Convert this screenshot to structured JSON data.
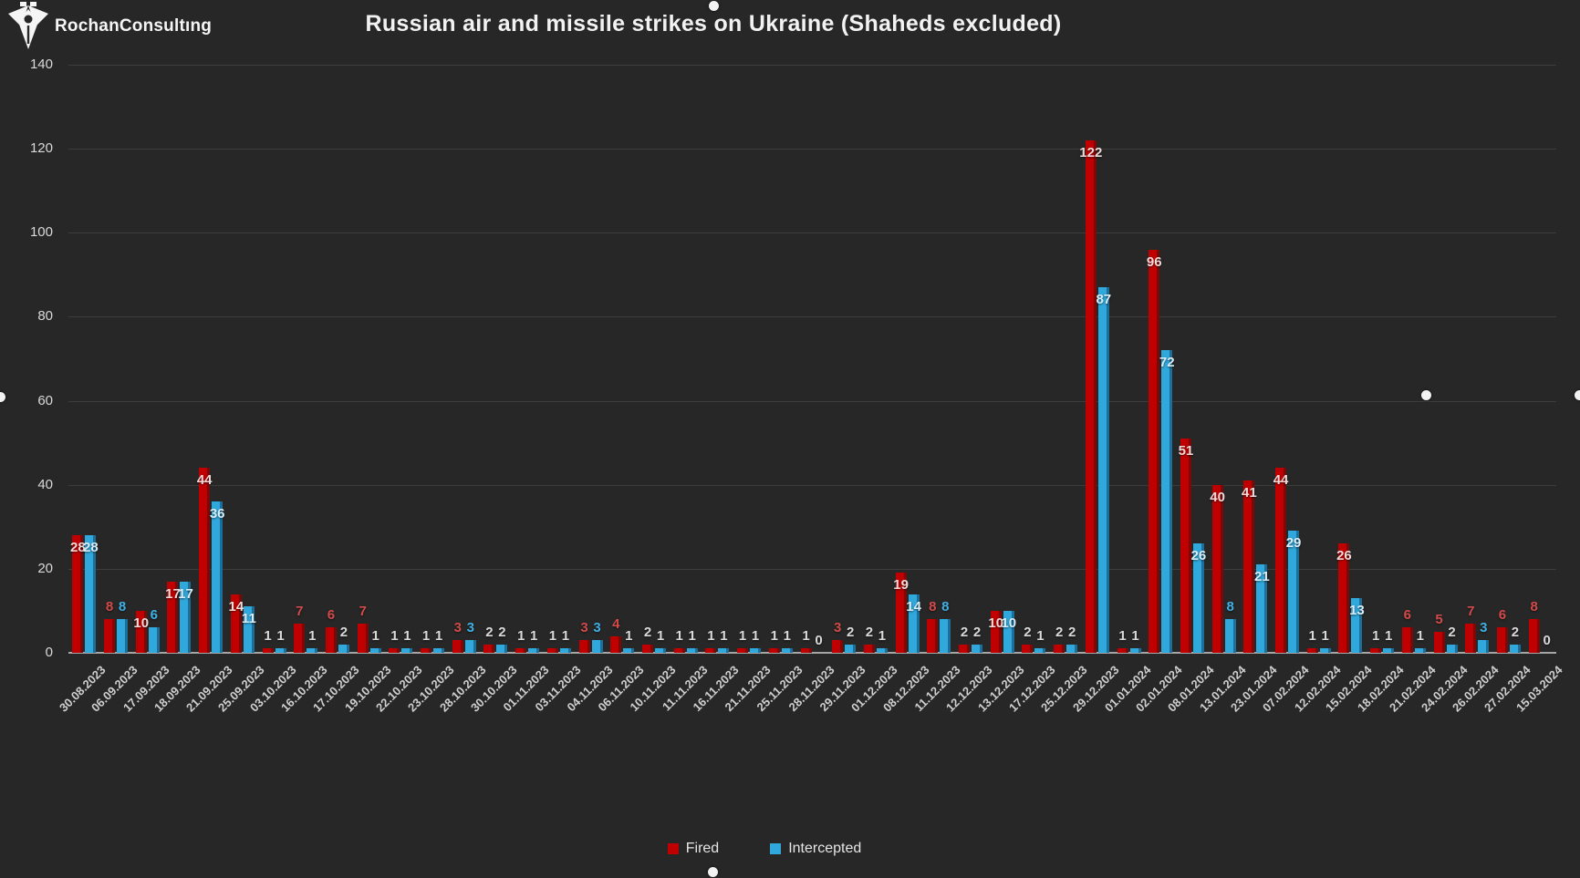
{
  "brand": {
    "name": "RochanConsultıng"
  },
  "chart_data": {
    "type": "bar",
    "title": "Russian air and missile strikes on Ukraine (Shaheds excluded)",
    "xlabel": "",
    "ylabel": "",
    "ylim": [
      0,
      140
    ],
    "yticks": [
      0,
      20,
      40,
      60,
      80,
      100,
      120,
      140
    ],
    "grid": true,
    "legend_position": "bottom",
    "categories": [
      "30.08.2023",
      "06.09.2023",
      "17.09.2023",
      "18.09.2023",
      "21.09.2023",
      "25.09.2023",
      "03.10.2023",
      "16.10.2023",
      "17.10.2023",
      "19.10.2023",
      "22.10.2023",
      "23.10.2023",
      "28.10.2023",
      "30.10.2023",
      "01.11.2023",
      "03.11.2023",
      "04.11.2023",
      "06.11.2023",
      "10.11.2023",
      "11.11.2023",
      "16.11.2023",
      "21.11.2023",
      "25.11.2023",
      "28.11.2023",
      "29.11.2023",
      "01.12.2023",
      "08.12.2023",
      "11.12.2023",
      "12.12.2023",
      "13.12.2023",
      "17.12.2023",
      "25.12.2023",
      "29.12.2023",
      "01.01.2024",
      "02.01.2024",
      "08.01.2024",
      "13.01.2024",
      "23.01.2024",
      "07.02.2024",
      "12.02.2024",
      "15.02.2024",
      "18.02.2024",
      "21.02.2024",
      "24.02.2024",
      "26.02.2024",
      "27.02.2024",
      "15.03.2024"
    ],
    "series": [
      {
        "name": "Fired",
        "color": "#c00000",
        "edge_color": "#7c0808",
        "label_out_color": "#d24a4a",
        "label_in_color": "#f0d9d9",
        "values": [
          28,
          8,
          10,
          17,
          44,
          14,
          1,
          7,
          6,
          7,
          1,
          1,
          3,
          2,
          1,
          1,
          3,
          4,
          2,
          1,
          1,
          1,
          1,
          1,
          3,
          2,
          19,
          8,
          2,
          10,
          2,
          2,
          122,
          1,
          96,
          51,
          40,
          41,
          44,
          1,
          26,
          1,
          6,
          5,
          7,
          6,
          8
        ]
      },
      {
        "name": "Intercepted",
        "color": "#31a8dc",
        "edge_color": "#1d6f9b",
        "label_out_color": "#3fb0e4",
        "label_in_color": "#d8edf8",
        "values": [
          28,
          8,
          6,
          17,
          36,
          11,
          1,
          1,
          2,
          1,
          1,
          1,
          3,
          2,
          1,
          1,
          3,
          1,
          1,
          1,
          1,
          1,
          1,
          0,
          2,
          1,
          14,
          8,
          2,
          10,
          1,
          2,
          87,
          1,
          72,
          26,
          8,
          21,
          29,
          1,
          13,
          1,
          1,
          2,
          3,
          2,
          0
        ]
      }
    ]
  },
  "colors": {
    "background": "#272727",
    "gridline": "#3d3d3d",
    "axis_line": "#a6a6a6",
    "tick_text": "#d9d9d9",
    "neutral_label": "#d9d9d9",
    "title_text": "#f2f2f2"
  }
}
